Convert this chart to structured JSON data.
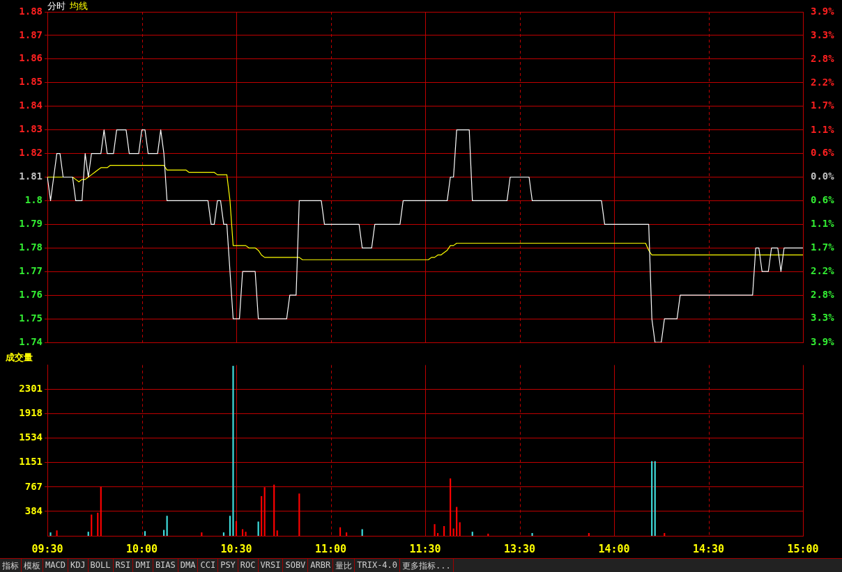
{
  "chart_data": [
    {
      "type": "line",
      "categories": [
        null,
        null,
        null,
        null,
        null,
        null,
        null,
        null,
        null,
        null,
        null,
        null,
        null,
        null,
        null,
        null,
        null,
        null,
        null,
        null,
        null,
        null,
        null,
        null,
        null,
        null,
        null,
        null,
        null,
        null,
        null,
        null,
        null,
        null,
        null,
        null,
        null,
        null,
        null,
        null,
        null,
        null,
        null,
        null,
        null,
        null,
        null,
        null,
        null,
        null,
        null,
        null,
        null,
        null,
        null,
        null,
        null,
        null,
        null,
        null,
        null,
        null,
        null,
        null,
        null,
        null,
        null,
        null,
        null,
        null,
        null,
        null,
        null,
        null,
        null,
        null,
        null,
        null,
        null,
        null,
        null,
        null,
        null,
        null,
        null,
        null,
        null,
        null,
        null,
        null,
        null,
        null,
        null,
        null,
        null,
        null,
        null,
        null,
        null,
        null,
        null,
        null,
        null,
        null,
        null,
        null,
        null,
        null,
        null,
        null,
        null,
        null,
        null,
        null,
        null,
        null,
        null,
        null,
        null,
        null,
        null,
        null,
        null,
        null,
        null,
        null,
        null,
        null,
        null,
        null,
        null,
        null,
        null,
        null,
        null,
        null,
        null,
        null,
        null,
        null,
        null,
        null,
        null,
        null,
        null,
        null,
        null,
        null,
        null,
        null,
        null,
        null,
        null,
        null,
        null,
        null,
        null,
        null,
        null,
        null,
        null,
        null,
        null,
        null,
        null,
        null,
        null,
        null,
        null,
        null,
        null,
        null,
        null,
        null,
        null,
        null,
        null,
        null,
        null,
        null,
        null,
        null,
        null,
        null,
        null,
        null,
        null,
        null,
        null,
        null,
        null,
        null,
        null,
        null,
        null,
        null,
        null,
        null,
        null,
        null,
        null,
        null,
        null,
        null,
        null,
        null,
        null,
        null,
        null,
        null,
        null,
        null,
        null,
        null,
        null,
        null,
        null,
        null,
        null,
        null,
        null,
        null,
        null,
        null,
        null,
        null,
        null,
        null,
        null,
        null,
        null,
        null,
        null,
        null,
        null,
        null,
        null,
        null,
        null,
        null,
        null
      ],
      "ylim": [
        1.74,
        1.88
      ],
      "yticks": [
        1.74,
        1.75,
        1.76,
        1.77,
        1.78,
        1.79,
        1.8,
        1.81,
        1.82,
        1.83,
        1.84,
        1.85,
        1.86,
        1.87,
        1.88
      ],
      "y2lim": [
        -3.87,
        3.87
      ],
      "y2ticks": [
        {
          "value": -3.87,
          "label": "3.9%"
        },
        {
          "value": -3.31,
          "label": "3.3%"
        },
        {
          "value": -2.76,
          "label": "2.8%"
        },
        {
          "value": -2.21,
          "label": "2.2%"
        },
        {
          "value": -1.66,
          "label": "1.7%"
        },
        {
          "value": -1.1,
          "label": "1.1%"
        },
        {
          "value": -0.55,
          "label": "0.6%"
        },
        {
          "value": 0,
          "label": "0.0%"
        },
        {
          "value": 0.55,
          "label": "0.6%"
        },
        {
          "value": 1.1,
          "label": "1.1%"
        },
        {
          "value": 1.66,
          "label": "1.7%"
        },
        {
          "value": 2.21,
          "label": "2.2%"
        },
        {
          "value": 2.76,
          "label": "2.8%"
        },
        {
          "value": 3.31,
          "label": "3.3%"
        },
        {
          "value": 3.87,
          "label": "3.9%"
        }
      ],
      "tick_labels": "y",
      "grid": true,
      "legend": "top left",
      "marker": "none",
      "line_style": "solid",
      "series": [
        {
          "name": "分时",
          "color": "#ffffff",
          "values": [
            1.81,
            1.8,
            1.81,
            1.82,
            1.82,
            1.81,
            1.81,
            1.81,
            1.81,
            1.8,
            1.8,
            1.8,
            1.82,
            1.81,
            1.82,
            1.82,
            1.82,
            1.82,
            1.83,
            1.82,
            1.82,
            1.82,
            1.83,
            1.83,
            1.83,
            1.83,
            1.82,
            1.82,
            1.82,
            1.82,
            1.83,
            1.83,
            1.82,
            1.82,
            1.82,
            1.82,
            1.83,
            1.82,
            1.8,
            1.8,
            1.8,
            1.8,
            1.8,
            1.8,
            1.8,
            1.8,
            1.8,
            1.8,
            1.8,
            1.8,
            1.8,
            1.8,
            1.79,
            1.79,
            1.8,
            1.8,
            1.79,
            1.79,
            1.77,
            1.75,
            1.75,
            1.75,
            1.77,
            1.77,
            1.77,
            1.77,
            1.77,
            1.75,
            1.75,
            1.75,
            1.75,
            1.75,
            1.75,
            1.75,
            1.75,
            1.75,
            1.75,
            1.76,
            1.76,
            1.76,
            1.8,
            1.8,
            1.8,
            1.8,
            1.8,
            1.8,
            1.8,
            1.8,
            1.79,
            1.79,
            1.79,
            1.79,
            1.79,
            1.79,
            1.79,
            1.79,
            1.79,
            1.79,
            1.79,
            1.79,
            1.78,
            1.78,
            1.78,
            1.78,
            1.79,
            1.79,
            1.79,
            1.79,
            1.79,
            1.79,
            1.79,
            1.79,
            1.79,
            1.8,
            1.8,
            1.8,
            1.8,
            1.8,
            1.8,
            1.8,
            1.8,
            1.8,
            1.8,
            1.8,
            1.8,
            1.8,
            1.8,
            1.8,
            1.81,
            1.81,
            1.83,
            1.83,
            1.83,
            1.83,
            1.83,
            1.8,
            1.8,
            1.8,
            1.8,
            1.8,
            1.8,
            1.8,
            1.8,
            1.8,
            1.8,
            1.8,
            1.8,
            1.81,
            1.81,
            1.81,
            1.81,
            1.81,
            1.81,
            1.81,
            1.8,
            1.8,
            1.8,
            1.8,
            1.8,
            1.8,
            1.8,
            1.8,
            1.8,
            1.8,
            1.8,
            1.8,
            1.8,
            1.8,
            1.8,
            1.8,
            1.8,
            1.8,
            1.8,
            1.8,
            1.8,
            1.8,
            1.8,
            1.79,
            1.79,
            1.79,
            1.79,
            1.79,
            1.79,
            1.79,
            1.79,
            1.79,
            1.79,
            1.79,
            1.79,
            1.79,
            1.79,
            1.79,
            1.75,
            1.74,
            1.74,
            1.74,
            1.75,
            1.75,
            1.75,
            1.75,
            1.75,
            1.76,
            1.76,
            1.76,
            1.76,
            1.76,
            1.76,
            1.76,
            1.76,
            1.76,
            1.76,
            1.76,
            1.76,
            1.76,
            1.76,
            1.76,
            1.76,
            1.76,
            1.76,
            1.76,
            1.76,
            1.76,
            1.76,
            1.76,
            1.76,
            1.78,
            1.78,
            1.77,
            1.77,
            1.77,
            1.78,
            1.78,
            1.78,
            1.77,
            1.78,
            1.78,
            1.78,
            1.78,
            1.78,
            1.78,
            1.78
          ]
        },
        {
          "name": "均线",
          "color": "#ffff00",
          "values": [
            1.81,
            1.81,
            1.81,
            1.81,
            1.81,
            1.81,
            1.81,
            1.81,
            1.81,
            1.809,
            1.808,
            1.809,
            1.809,
            1.81,
            1.811,
            1.812,
            1.813,
            1.814,
            1.814,
            1.814,
            1.815,
            1.815,
            1.815,
            1.815,
            1.815,
            1.815,
            1.815,
            1.815,
            1.815,
            1.815,
            1.815,
            1.815,
            1.815,
            1.815,
            1.815,
            1.815,
            1.815,
            1.815,
            1.813,
            1.813,
            1.813,
            1.813,
            1.813,
            1.813,
            1.813,
            1.812,
            1.812,
            1.812,
            1.812,
            1.812,
            1.812,
            1.812,
            1.812,
            1.812,
            1.811,
            1.811,
            1.811,
            1.811,
            1.8,
            1.781,
            1.781,
            1.781,
            1.781,
            1.781,
            1.78,
            1.78,
            1.78,
            1.779,
            1.777,
            1.776,
            1.776,
            1.776,
            1.776,
            1.776,
            1.776,
            1.776,
            1.776,
            1.776,
            1.776,
            1.776,
            1.776,
            1.775,
            1.775,
            1.775,
            1.775,
            1.775,
            1.775,
            1.775,
            1.775,
            1.775,
            1.775,
            1.775,
            1.775,
            1.775,
            1.775,
            1.775,
            1.775,
            1.775,
            1.775,
            1.775,
            1.775,
            1.775,
            1.775,
            1.775,
            1.775,
            1.775,
            1.775,
            1.775,
            1.775,
            1.775,
            1.775,
            1.775,
            1.775,
            1.775,
            1.775,
            1.775,
            1.775,
            1.775,
            1.775,
            1.775,
            1.775,
            1.775,
            1.776,
            1.776,
            1.777,
            1.777,
            1.778,
            1.779,
            1.781,
            1.781,
            1.782,
            1.782,
            1.782,
            1.782,
            1.782,
            1.782,
            1.782,
            1.782,
            1.782,
            1.782,
            1.782,
            1.782,
            1.782,
            1.782,
            1.782,
            1.782,
            1.782,
            1.782,
            1.782,
            1.782,
            1.782,
            1.782,
            1.782,
            1.782,
            1.782,
            1.782,
            1.782,
            1.782,
            1.782,
            1.782,
            1.782,
            1.782,
            1.782,
            1.782,
            1.782,
            1.782,
            1.782,
            1.782,
            1.782,
            1.782,
            1.782,
            1.782,
            1.782,
            1.782,
            1.782,
            1.782,
            1.782,
            1.782,
            1.782,
            1.782,
            1.782,
            1.782,
            1.782,
            1.782,
            1.782,
            1.782,
            1.782,
            1.782,
            1.782,
            1.782,
            1.782,
            1.779,
            1.777,
            1.777,
            1.777,
            1.777,
            1.777,
            1.777,
            1.777,
            1.777,
            1.777,
            1.777,
            1.777,
            1.777,
            1.777,
            1.777,
            1.777,
            1.777,
            1.777,
            1.777,
            1.777,
            1.777,
            1.777,
            1.777,
            1.777,
            1.777,
            1.777,
            1.777,
            1.777,
            1.777,
            1.777,
            1.777,
            1.777,
            1.777,
            1.777,
            1.777,
            1.777,
            1.777,
            1.777,
            1.777,
            1.777,
            1.777,
            1.777,
            1.777,
            1.777,
            1.777,
            1.777,
            1.777,
            1.777,
            1.777,
            1.777
          ]
        }
      ]
    },
    {
      "type": "bar",
      "title": "成交量",
      "categories": [
        "09:30",
        null,
        null,
        null,
        null,
        null,
        null,
        null,
        null,
        null,
        null,
        null,
        null,
        null,
        null,
        null,
        null,
        null,
        null,
        null,
        null,
        null,
        null,
        null,
        null,
        null,
        null,
        null,
        null,
        null,
        "10:00",
        null,
        null,
        null,
        null,
        null,
        null,
        null,
        null,
        null,
        null,
        null,
        null,
        null,
        null,
        null,
        null,
        null,
        null,
        null,
        null,
        null,
        null,
        null,
        null,
        null,
        null,
        null,
        null,
        null,
        "10:30",
        null,
        null,
        null,
        null,
        null,
        null,
        null,
        null,
        null,
        null,
        null,
        null,
        null,
        null,
        null,
        null,
        null,
        null,
        null,
        null,
        null,
        null,
        null,
        null,
        null,
        null,
        null,
        null,
        null,
        "11:00",
        null,
        null,
        null,
        null,
        null,
        null,
        null,
        null,
        null,
        null,
        null,
        null,
        null,
        null,
        null,
        null,
        null,
        null,
        null,
        null,
        null,
        null,
        null,
        null,
        null,
        null,
        null,
        null,
        null,
        "11:30",
        null,
        null,
        null,
        null,
        null,
        null,
        null,
        null,
        null,
        null,
        null,
        null,
        null,
        null,
        null,
        null,
        null,
        null,
        null,
        null,
        null,
        null,
        null,
        null,
        null,
        null,
        null,
        null,
        null,
        "13:30",
        null,
        null,
        null,
        null,
        null,
        null,
        null,
        null,
        null,
        null,
        null,
        null,
        null,
        null,
        null,
        null,
        null,
        null,
        null,
        null,
        null,
        null,
        null,
        null,
        null,
        null,
        null,
        null,
        null,
        "14:00",
        null,
        null,
        null,
        null,
        null,
        null,
        null,
        null,
        null,
        null,
        null,
        null,
        null,
        null,
        null,
        null,
        null,
        null,
        null,
        null,
        null,
        null,
        null,
        null,
        null,
        null,
        null,
        null,
        null,
        "14:30",
        null,
        null,
        null,
        null,
        null,
        null,
        null,
        null,
        null,
        null,
        null,
        null,
        null,
        null,
        null,
        null,
        null,
        null,
        null,
        null,
        null,
        null,
        null,
        null,
        null,
        null,
        null,
        null,
        null,
        "15:00"
      ],
      "ylim": [
        0,
        2685
      ],
      "yticks": [
        384,
        767,
        1151,
        1534,
        1918,
        2301
      ],
      "grid": true,
      "annotations": [
        "指标",
        "模板",
        "MACD",
        "KDJ",
        "BOLL",
        "RSI",
        "DMI",
        "BIAS",
        "DMA",
        "CCI",
        "PSY",
        "ROC",
        "VRSI",
        "SOBV",
        "ARBR",
        "量比",
        "TRIX-4.0",
        "更多指标..."
      ],
      "series": [
        {
          "values": [
            null,
            50,
            null,
            80,
            null,
            null,
            null,
            null,
            null,
            null,
            null,
            null,
            null,
            60,
            330,
            null,
            360,
            770,
            null,
            null,
            null,
            null,
            null,
            null,
            null,
            null,
            null,
            null,
            null,
            null,
            null,
            70,
            null,
            null,
            null,
            null,
            null,
            90,
            310,
            null,
            null,
            null,
            null,
            null,
            null,
            null,
            null,
            null,
            null,
            50,
            null,
            null,
            null,
            null,
            null,
            null,
            50,
            null,
            310,
            2670,
            230,
            null,
            100,
            60,
            null,
            null,
            null,
            220,
            620,
            760,
            null,
            null,
            800,
            80,
            null,
            null,
            null,
            null,
            null,
            null,
            660,
            null,
            null,
            null,
            null,
            null,
            null,
            null,
            null,
            null,
            null,
            null,
            null,
            130,
            null,
            50,
            null,
            null,
            null,
            null,
            100,
            null,
            null,
            null,
            null,
            null,
            null,
            null,
            null,
            null,
            null,
            null,
            null,
            null,
            null,
            null,
            null,
            null,
            null,
            null,
            null,
            null,
            null,
            180,
            40,
            null,
            150,
            null,
            900,
            110,
            450,
            210,
            null,
            null,
            null,
            60,
            null,
            null,
            null,
            null,
            30,
            null,
            null,
            null,
            null,
            null,
            null,
            null,
            null,
            null,
            null,
            null,
            null,
            null,
            40,
            null,
            null,
            null,
            null,
            null,
            null,
            null,
            null,
            null,
            null,
            null,
            null,
            null,
            null,
            null,
            null,
            null,
            40,
            null,
            null,
            null,
            null,
            null,
            null,
            null,
            null,
            null,
            null,
            null,
            null,
            null,
            null,
            null,
            null,
            null,
            null,
            null,
            1170,
            1170,
            null,
            null,
            40,
            null,
            null,
            null,
            null,
            null,
            null,
            null,
            null,
            null,
            null,
            null,
            null,
            null,
            null,
            null,
            null,
            null,
            null,
            null,
            null,
            null,
            null,
            null,
            null,
            null,
            null,
            null,
            null,
            null,
            null,
            null,
            null,
            null,
            null,
            null,
            null,
            null,
            null,
            null,
            null,
            null,
            null,
            null,
            null
          ],
          "colors": [
            null,
            "#40e0e0",
            null,
            "#ff0000",
            null,
            null,
            null,
            null,
            null,
            null,
            null,
            null,
            null,
            "#40e0e0",
            "#ff0000",
            null,
            "#ff0000",
            "#ff0000",
            null,
            null,
            null,
            null,
            null,
            null,
            null,
            null,
            null,
            null,
            null,
            null,
            null,
            "#40e0e0",
            null,
            null,
            null,
            null,
            null,
            "#40e0e0",
            "#40e0e0",
            null,
            null,
            null,
            null,
            null,
            null,
            null,
            null,
            null,
            null,
            "#ff0000",
            null,
            null,
            null,
            null,
            null,
            null,
            "#40e0e0",
            null,
            "#40e0e0",
            "#40e0e0",
            "#ff0000",
            null,
            "#ff0000",
            "#ff0000",
            null,
            null,
            null,
            "#40e0e0",
            "#ff0000",
            "#ff0000",
            null,
            null,
            "#ff0000",
            "#ff0000",
            null,
            null,
            null,
            null,
            null,
            null,
            "#ff0000",
            null,
            null,
            null,
            null,
            null,
            null,
            null,
            null,
            null,
            null,
            null,
            null,
            "#ff0000",
            null,
            "#ff0000",
            null,
            null,
            null,
            null,
            "#40e0e0",
            null,
            null,
            null,
            null,
            null,
            null,
            null,
            null,
            null,
            null,
            null,
            null,
            null,
            null,
            null,
            null,
            null,
            null,
            null,
            null,
            null,
            null,
            "#ff0000",
            "#ff0000",
            null,
            "#ff0000",
            null,
            "#ff0000",
            "#ff0000",
            "#ff0000",
            "#ff0000",
            null,
            null,
            null,
            "#40e0e0",
            null,
            null,
            null,
            null,
            "#ff0000",
            null,
            null,
            null,
            null,
            null,
            null,
            null,
            null,
            null,
            null,
            null,
            null,
            null,
            "#40e0e0",
            null,
            null,
            null,
            null,
            null,
            null,
            null,
            null,
            null,
            null,
            null,
            null,
            null,
            null,
            null,
            null,
            null,
            "#ff0000",
            null,
            null,
            null,
            null,
            null,
            null,
            null,
            null,
            null,
            null,
            null,
            null,
            null,
            null,
            null,
            null,
            null,
            null,
            null,
            "#40e0e0",
            "#40e0e0",
            null,
            null,
            "#ff0000",
            null,
            null,
            null,
            null,
            null,
            null,
            null,
            null,
            null,
            null,
            null,
            null,
            null,
            null,
            null,
            null,
            null,
            null,
            null,
            null,
            null,
            null,
            null,
            null,
            null,
            null,
            null,
            null,
            null,
            null,
            null,
            null,
            null,
            null,
            null,
            null,
            null,
            null,
            null,
            null,
            null,
            null,
            null,
            null
          ]
        }
      ]
    }
  ]
}
